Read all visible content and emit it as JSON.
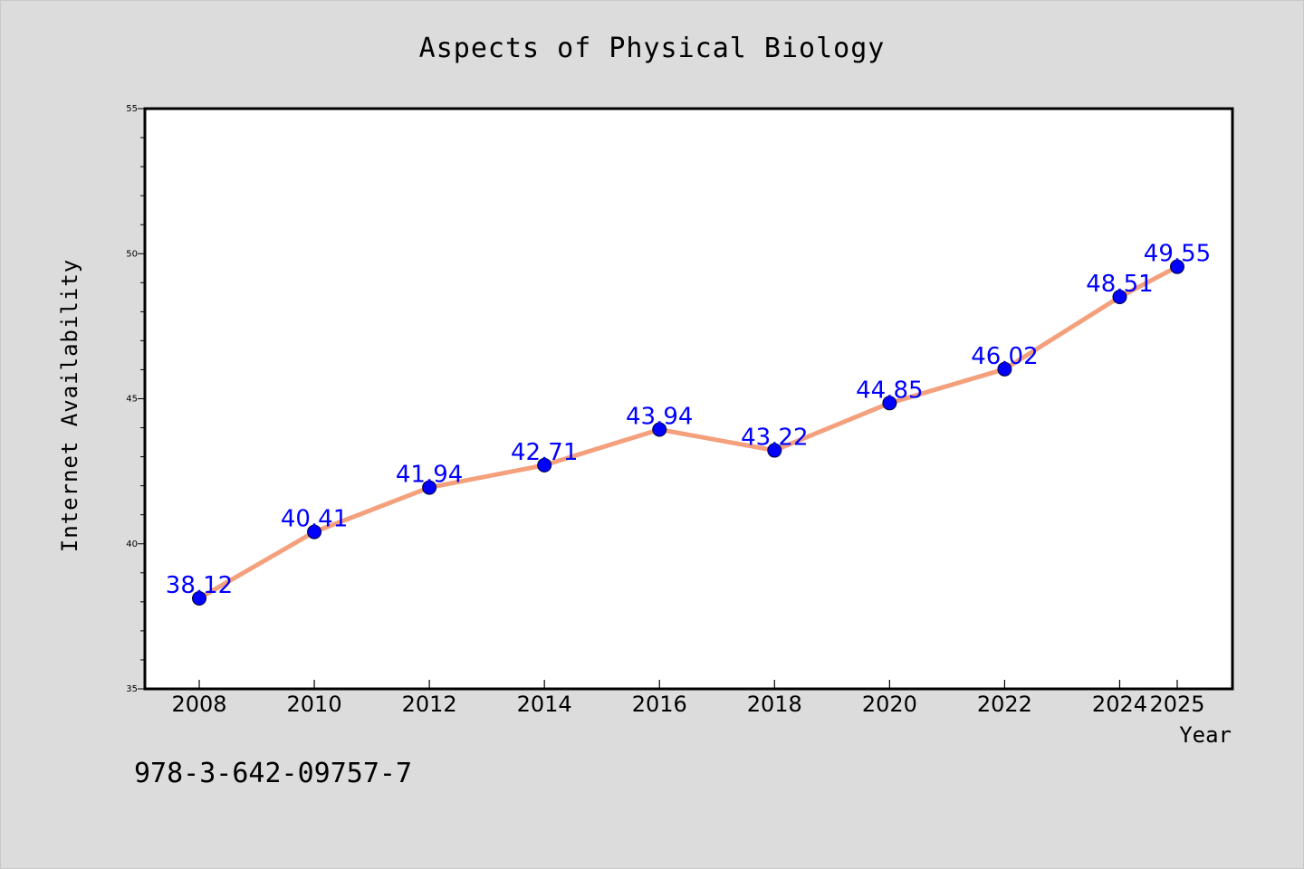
{
  "chart_data": {
    "type": "line",
    "title": "Aspects of Physical Biology",
    "xlabel": "Year",
    "ylabel": "Internet Availability",
    "x": [
      2008,
      2010,
      2012,
      2014,
      2016,
      2018,
      2020,
      2022,
      2024,
      2025
    ],
    "series": [
      {
        "values": [
          38.12,
          40.41,
          41.94,
          42.71,
          43.94,
          43.22,
          44.85,
          46.02,
          48.51,
          49.55
        ],
        "line_color": "#f4a07c",
        "marker_color": "#0000ff"
      }
    ],
    "ylim": [
      35,
      55
    ],
    "y_ticks": [
      "35",
      "40",
      "45",
      "50",
      "55"
    ],
    "x_tick_labels": [
      "2008",
      "2010",
      "2012",
      "2014",
      "2016",
      "2018",
      "2020",
      "2022",
      "2024",
      "2025"
    ],
    "grid": false,
    "data_label_color": "#0000ff"
  },
  "footnote": "978-3-642-09757-7"
}
